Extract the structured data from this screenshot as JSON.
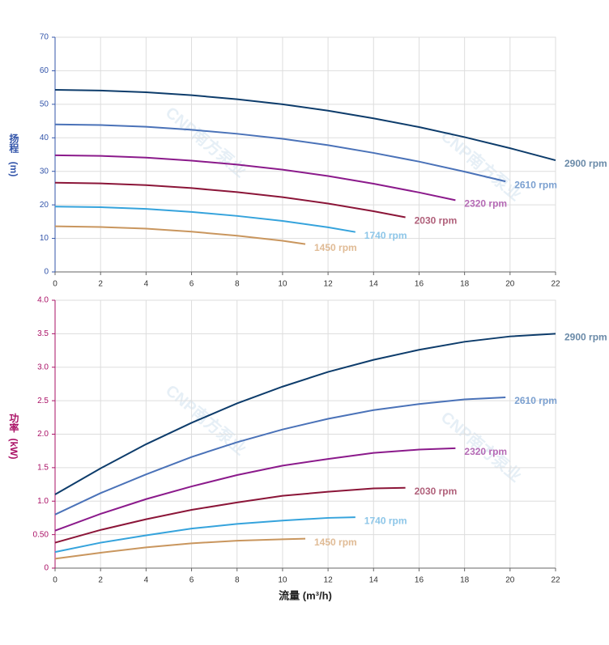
{
  "chart_data": [
    {
      "type": "line",
      "ylabel": [
        "扬程",
        "(m)"
      ],
      "ylabel_color": "#3355aa",
      "watermark": "CNP南方泵业",
      "xlim": [
        0,
        22
      ],
      "xticks": [
        0,
        2,
        4,
        6,
        8,
        10,
        12,
        14,
        16,
        18,
        20,
        22
      ],
      "ylim": [
        0,
        70
      ],
      "yticks": [
        0,
        10,
        20,
        30,
        40,
        50,
        60,
        70
      ],
      "grid": true,
      "series": [
        {
          "name": "2900 rpm",
          "color": "#0d3c6b",
          "label_color": "#6a8aa8",
          "x": [
            0,
            2,
            4,
            6,
            8,
            10,
            12,
            14,
            16,
            18,
            20,
            22
          ],
          "values": [
            54.3,
            54.1,
            53.6,
            52.7,
            51.5,
            50.0,
            48.1,
            45.8,
            43.2,
            40.2,
            36.9,
            33.3
          ]
        },
        {
          "name": "2610 rpm",
          "color": "#4a72b8",
          "label_color": "#7ba0d0",
          "x": [
            0,
            2,
            4,
            6,
            8,
            10,
            12,
            14,
            16,
            18,
            19.8
          ],
          "values": [
            44.0,
            43.8,
            43.3,
            42.4,
            41.2,
            39.7,
            37.8,
            35.5,
            32.9,
            29.9,
            27.0
          ]
        },
        {
          "name": "2320 rpm",
          "color": "#8b1a8b",
          "label_color": "#b56ab5",
          "x": [
            0,
            2,
            4,
            6,
            8,
            10,
            12,
            14,
            16,
            17.6
          ],
          "values": [
            34.8,
            34.6,
            34.1,
            33.2,
            32.0,
            30.5,
            28.6,
            26.3,
            23.7,
            21.4
          ]
        },
        {
          "name": "2030 rpm",
          "color": "#8b1538",
          "label_color": "#b0607a",
          "x": [
            0,
            2,
            4,
            6,
            8,
            10,
            12,
            14,
            15.4
          ],
          "values": [
            26.6,
            26.4,
            25.9,
            25.0,
            23.8,
            22.3,
            20.4,
            18.1,
            16.3
          ]
        },
        {
          "name": "1740 rpm",
          "color": "#35a3dc",
          "label_color": "#8dc6e8",
          "x": [
            0,
            2,
            4,
            6,
            8,
            10,
            12,
            13.2
          ],
          "values": [
            19.5,
            19.3,
            18.8,
            17.9,
            16.7,
            15.2,
            13.3,
            11.9
          ]
        },
        {
          "name": "1450 rpm",
          "color": "#c9965e",
          "label_color": "#e0bb95",
          "x": [
            0,
            2,
            4,
            6,
            8,
            10,
            11
          ],
          "values": [
            13.6,
            13.4,
            12.9,
            12.0,
            10.8,
            9.3,
            8.3
          ]
        }
      ]
    },
    {
      "type": "line",
      "ylabel": [
        "功率",
        "(kW)"
      ],
      "ylabel_color": "#aa1166",
      "watermark": "CNP南方泵业",
      "xlabel": "流量 (m³/h)",
      "xlim": [
        0,
        22
      ],
      "xticks": [
        0,
        2,
        4,
        6,
        8,
        10,
        12,
        14,
        16,
        18,
        20,
        22
      ],
      "ylim": [
        0,
        4
      ],
      "yticks": [
        0,
        {
          "value": 0.5,
          "label": "0.50"
        },
        {
          "value": 1,
          "label": "1.0"
        },
        1.5,
        {
          "value": 2,
          "label": "2.0"
        },
        2.5,
        {
          "value": 3,
          "label": "3.0"
        },
        3.5,
        {
          "value": 4,
          "label": "4.0"
        }
      ],
      "grid": true,
      "series": [
        {
          "name": "2900 rpm",
          "color": "#0d3c6b",
          "label_color": "#6a8aa8",
          "x": [
            0,
            2,
            4,
            6,
            8,
            10,
            12,
            14,
            16,
            18,
            20,
            22
          ],
          "values": [
            1.1,
            1.49,
            1.85,
            2.17,
            2.46,
            2.71,
            2.93,
            3.11,
            3.26,
            3.38,
            3.46,
            3.5
          ]
        },
        {
          "name": "2610 rpm",
          "color": "#4a72b8",
          "label_color": "#7ba0d0",
          "x": [
            0,
            2,
            4,
            6,
            8,
            10,
            12,
            14,
            16,
            18,
            19.8
          ],
          "values": [
            0.8,
            1.12,
            1.4,
            1.66,
            1.88,
            2.07,
            2.23,
            2.36,
            2.45,
            2.52,
            2.55
          ]
        },
        {
          "name": "2320 rpm",
          "color": "#8b1a8b",
          "label_color": "#b56ab5",
          "x": [
            0,
            2,
            4,
            6,
            8,
            10,
            12,
            14,
            16,
            17.6
          ],
          "values": [
            0.56,
            0.81,
            1.03,
            1.22,
            1.39,
            1.53,
            1.63,
            1.72,
            1.77,
            1.79
          ]
        },
        {
          "name": "2030 rpm",
          "color": "#8b1538",
          "label_color": "#b0607a",
          "x": [
            0,
            2,
            4,
            6,
            8,
            10,
            12,
            14,
            15.4
          ],
          "values": [
            0.38,
            0.57,
            0.73,
            0.87,
            0.98,
            1.08,
            1.14,
            1.19,
            1.2
          ]
        },
        {
          "name": "1740 rpm",
          "color": "#35a3dc",
          "label_color": "#8dc6e8",
          "x": [
            0,
            2,
            4,
            6,
            8,
            10,
            12,
            13.2
          ],
          "values": [
            0.24,
            0.38,
            0.49,
            0.59,
            0.66,
            0.71,
            0.75,
            0.76
          ]
        },
        {
          "name": "1450 rpm",
          "color": "#c9965e",
          "label_color": "#e0bb95",
          "x": [
            0,
            2,
            4,
            6,
            8,
            10,
            11
          ],
          "values": [
            0.14,
            0.23,
            0.31,
            0.37,
            0.41,
            0.43,
            0.44
          ]
        }
      ]
    }
  ]
}
